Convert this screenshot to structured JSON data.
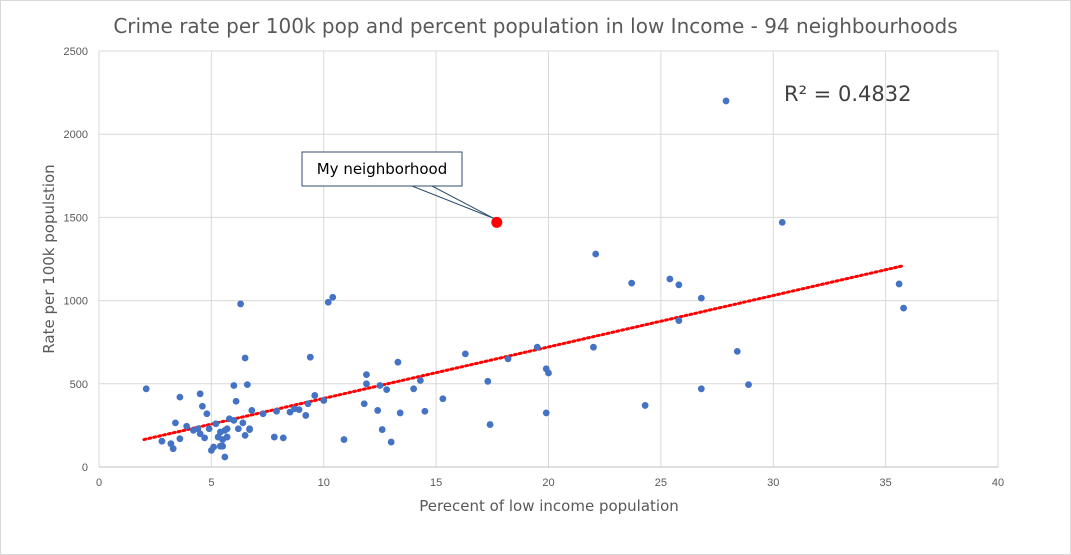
{
  "chart_data": {
    "type": "scatter",
    "title": "Crime rate per 100k pop and percent population in low Income - 94 neighbourhoods",
    "xlabel": "Perecent of low income population",
    "ylabel": "Rate per 100k populstion",
    "xlim": [
      0,
      40
    ],
    "ylim": [
      0,
      2500
    ],
    "x_ticks": [
      0,
      5,
      10,
      15,
      20,
      25,
      30,
      35,
      40
    ],
    "y_ticks": [
      0,
      500,
      1000,
      1500,
      2000,
      2500
    ],
    "grid": true,
    "series_color": "#4472c4",
    "highlight_color": "#ff0000",
    "trendline_color": "#ff0000",
    "r_squared_label": "R² = 0.4832",
    "trendline": {
      "x": [
        2.0,
        35.8
      ],
      "y": [
        165,
        1210
      ]
    },
    "highlight": {
      "label": "My neighborhood",
      "x": 17.7,
      "y": 1470
    },
    "points": [
      [
        2.1,
        470
      ],
      [
        2.8,
        155
      ],
      [
        3.2,
        140
      ],
      [
        3.3,
        110
      ],
      [
        3.4,
        265
      ],
      [
        3.6,
        420
      ],
      [
        3.6,
        170
      ],
      [
        3.9,
        245
      ],
      [
        4.2,
        220
      ],
      [
        4.4,
        230
      ],
      [
        4.5,
        440
      ],
      [
        4.5,
        200
      ],
      [
        4.6,
        365
      ],
      [
        4.7,
        175
      ],
      [
        4.8,
        320
      ],
      [
        4.9,
        230
      ],
      [
        5.0,
        100
      ],
      [
        5.1,
        120
      ],
      [
        5.2,
        260
      ],
      [
        5.3,
        180
      ],
      [
        5.4,
        125
      ],
      [
        5.4,
        210
      ],
      [
        5.5,
        125
      ],
      [
        5.5,
        165
      ],
      [
        5.6,
        60
      ],
      [
        5.6,
        220
      ],
      [
        5.7,
        180
      ],
      [
        5.7,
        230
      ],
      [
        5.8,
        290
      ],
      [
        6.0,
        490
      ],
      [
        6.0,
        280
      ],
      [
        6.1,
        395
      ],
      [
        6.2,
        230
      ],
      [
        6.3,
        980
      ],
      [
        6.4,
        265
      ],
      [
        6.5,
        655
      ],
      [
        6.5,
        190
      ],
      [
        6.6,
        495
      ],
      [
        6.7,
        225
      ],
      [
        6.7,
        230
      ],
      [
        6.8,
        340
      ],
      [
        7.3,
        320
      ],
      [
        7.8,
        180
      ],
      [
        7.9,
        335
      ],
      [
        8.2,
        175
      ],
      [
        8.5,
        330
      ],
      [
        8.7,
        350
      ],
      [
        8.9,
        345
      ],
      [
        9.2,
        310
      ],
      [
        9.3,
        380
      ],
      [
        9.4,
        660
      ],
      [
        9.6,
        430
      ],
      [
        10.0,
        400
      ],
      [
        10.2,
        990
      ],
      [
        10.4,
        1020
      ],
      [
        10.9,
        165
      ],
      [
        11.8,
        380
      ],
      [
        11.9,
        555
      ],
      [
        11.9,
        500
      ],
      [
        12.4,
        340
      ],
      [
        12.5,
        490
      ],
      [
        12.6,
        225
      ],
      [
        12.8,
        465
      ],
      [
        13.0,
        150
      ],
      [
        13.3,
        630
      ],
      [
        13.4,
        325
      ],
      [
        14.0,
        470
      ],
      [
        14.3,
        520
      ],
      [
        14.5,
        335
      ],
      [
        15.3,
        410
      ],
      [
        16.3,
        680
      ],
      [
        17.3,
        515
      ],
      [
        17.4,
        255
      ],
      [
        18.2,
        650
      ],
      [
        19.5,
        720
      ],
      [
        19.9,
        590
      ],
      [
        19.9,
        325
      ],
      [
        20.0,
        565
      ],
      [
        22.0,
        720
      ],
      [
        22.1,
        1280
      ],
      [
        23.7,
        1105
      ],
      [
        24.3,
        370
      ],
      [
        25.4,
        1130
      ],
      [
        25.8,
        1095
      ],
      [
        25.8,
        880
      ],
      [
        26.8,
        1015
      ],
      [
        26.8,
        470
      ],
      [
        27.9,
        2200
      ],
      [
        28.4,
        695
      ],
      [
        28.9,
        495
      ],
      [
        30.4,
        1470
      ],
      [
        35.6,
        1100
      ],
      [
        35.8,
        955
      ]
    ]
  }
}
